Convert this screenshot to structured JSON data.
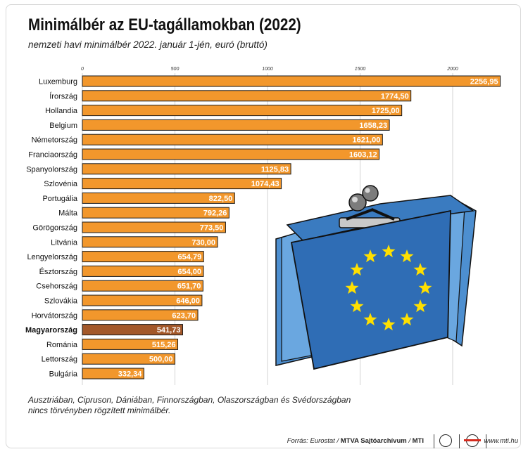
{
  "header": {
    "title": "Minimálbér az EU-tagállamokban (2022)",
    "subtitle": "nemzeti havi minimálbér 2022. január 1-jén, euró (bruttó)"
  },
  "note": "Ausztriában, Cipruson, Dániában, Finnországban, Olaszországban és Svédországban nincs törvényben rögzített minimálbér.",
  "footer": {
    "source_label": "Forrás: Eurostat / ",
    "source_bold": "MTVA Sajtóarchívum",
    "source_sep": " / ",
    "source_mti": "MTI",
    "website": "www.mti.hu"
  },
  "colors": {
    "bar": "#f2972c",
    "highlight": "#a3582a",
    "bar_stroke": "#1a1a1a"
  },
  "chart_data": {
    "type": "bar",
    "orientation": "horizontal",
    "xlim": [
      0,
      2300
    ],
    "xticks": [
      0,
      500,
      1000,
      1500,
      2000
    ],
    "highlight": "Magyarország",
    "categories": [
      "Luxemburg",
      "Írország",
      "Hollandia",
      "Belgium",
      "Németország",
      "Franciaország",
      "Spanyolország",
      "Szlovénia",
      "Portugália",
      "Málta",
      "Görögország",
      "Litvánia",
      "Lengyelország",
      "Észtország",
      "Csehország",
      "Szlovákia",
      "Horvátország",
      "Magyarország",
      "Románia",
      "Lettország",
      "Bulgária"
    ],
    "values": [
      2256.95,
      1774.5,
      1725.0,
      1658.23,
      1621.0,
      1603.12,
      1125.83,
      1074.43,
      822.5,
      792.26,
      773.5,
      730.0,
      654.79,
      654.0,
      651.7,
      646.0,
      623.7,
      541.73,
      515.26,
      500.0,
      332.34
    ],
    "value_labels": [
      "2256,95",
      "1774,50",
      "1725,00",
      "1658,23",
      "1621,00",
      "1603,12",
      "1125,83",
      "1074,43",
      "822,50",
      "792,26",
      "773,50",
      "730,00",
      "654,79",
      "654,00",
      "651,70",
      "646,00",
      "623,70",
      "541,73",
      "515,26",
      "500,00",
      "332,34"
    ]
  }
}
